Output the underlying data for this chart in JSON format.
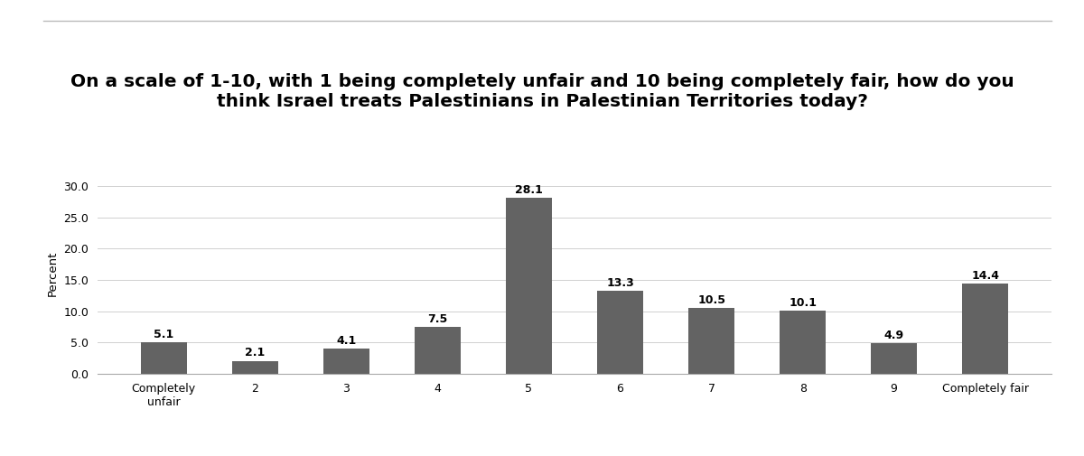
{
  "categories": [
    "Completely\nunfair",
    "2",
    "3",
    "4",
    "5",
    "6",
    "7",
    "8",
    "9",
    "Completely fair"
  ],
  "values": [
    5.1,
    2.1,
    4.1,
    7.5,
    28.1,
    13.3,
    10.5,
    10.1,
    4.9,
    14.4
  ],
  "bar_color": "#636363",
  "title_line1": "On a scale of 1-10, with 1 being completely unfair and 10 being completely fair, how do you",
  "title_line2": "think Israel treats Palestinians in Palestinian Territories today?",
  "ylabel": "Percent",
  "ylim": [
    0,
    32
  ],
  "yticks": [
    0.0,
    5.0,
    10.0,
    15.0,
    20.0,
    25.0,
    30.0
  ],
  "background_color": "#ffffff",
  "title_fontsize": 14.5,
  "bar_width": 0.5,
  "value_fontsize": 9,
  "ylabel_fontsize": 9.5,
  "tick_fontsize": 9,
  "grid_color": "#d0d0d0",
  "top_line_color": "#bbbbbb"
}
